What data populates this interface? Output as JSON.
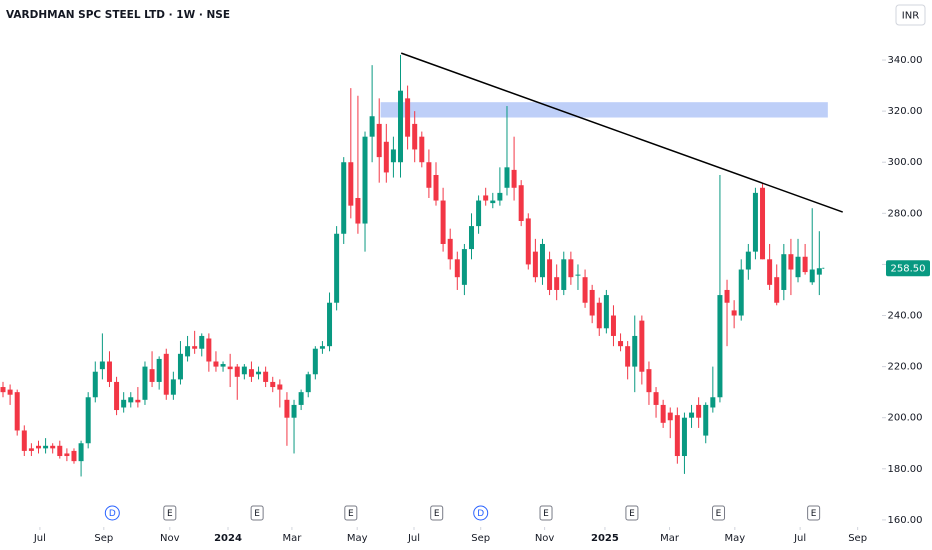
{
  "chart_data": {
    "type": "candlestick",
    "title": "VARDHMAN SPC STEEL LTD · 1W · NSE",
    "currency": "INR",
    "up_color": "#089981",
    "down_color": "#f23645",
    "categories": [
      null,
      null,
      null,
      null,
      null,
      null,
      null,
      null,
      null,
      null,
      null,
      null,
      null,
      null,
      null,
      null,
      null,
      null,
      null,
      null,
      null,
      null,
      null,
      null,
      null,
      null,
      null,
      null,
      null,
      null,
      null,
      null,
      null,
      null,
      null,
      null,
      null,
      null,
      null,
      null,
      null,
      null,
      null,
      null,
      null,
      null,
      null,
      null,
      null,
      null,
      null,
      null,
      null,
      null,
      null,
      null,
      null,
      null,
      null,
      null,
      null,
      null,
      null,
      null,
      null,
      null,
      null,
      null,
      null,
      null,
      null,
      null,
      null,
      null,
      null,
      null,
      null,
      null,
      null,
      null,
      null,
      null,
      null,
      null,
      null,
      null,
      null,
      null,
      null,
      null,
      null,
      null,
      null,
      null,
      null,
      null,
      null,
      null,
      null,
      null,
      null,
      null,
      null,
      null,
      null,
      null,
      null,
      null,
      null,
      null,
      null,
      null,
      null,
      null,
      null,
      null
    ],
    "open": [
      212,
      211,
      210,
      195,
      188,
      189,
      188,
      189,
      189,
      186,
      187,
      183,
      190,
      208,
      219,
      222,
      214,
      204,
      206,
      207,
      207,
      219,
      214,
      225,
      209,
      215,
      224,
      228,
      227,
      231,
      222,
      220,
      220,
      220,
      217,
      219,
      217,
      218,
      214,
      213,
      207,
      200,
      205,
      210,
      217,
      227,
      228,
      245,
      272,
      300,
      286,
      276,
      310,
      315,
      308,
      300,
      300,
      325,
      315,
      310,
      300,
      295,
      285,
      270,
      262,
      252,
      266,
      275,
      287,
      284,
      285,
      290,
      297,
      291,
      278,
      265,
      255,
      262,
      255,
      250,
      262,
      256,
      255,
      250,
      245,
      235,
      240,
      230,
      228,
      220,
      238,
      219,
      210,
      205,
      202,
      201,
      185,
      200,
      205,
      193,
      204,
      208,
      250,
      242,
      240,
      258,
      265,
      290,
      262,
      255,
      250,
      264,
      255,
      263,
      253,
      256
    ],
    "high": [
      214,
      213,
      211,
      197,
      190,
      191,
      192,
      190,
      191,
      188,
      188,
      191,
      210,
      222,
      233,
      226,
      216,
      210,
      210,
      212,
      222,
      226,
      224,
      227,
      218,
      230,
      232,
      234,
      233,
      233,
      226,
      222,
      225,
      221,
      221,
      222,
      220,
      220,
      216,
      215,
      210,
      207,
      211,
      218,
      228,
      230,
      249,
      275,
      302,
      329,
      326,
      312,
      338,
      325,
      315,
      310,
      342,
      330,
      320,
      312,
      305,
      300,
      290,
      274,
      265,
      268,
      280,
      287,
      290,
      288,
      298,
      322,
      310,
      293,
      280,
      270,
      270,
      265,
      260,
      265,
      265,
      260,
      258,
      252,
      247,
      250,
      244,
      233,
      230,
      240,
      240,
      222,
      212,
      207,
      204,
      204,
      202,
      205,
      208,
      206,
      220,
      295,
      254,
      246,
      262,
      268,
      290,
      292,
      268,
      260,
      268,
      270,
      270,
      268,
      282,
      273
    ],
    "low": [
      208,
      205,
      193,
      185,
      185,
      186,
      186,
      186,
      184,
      183,
      182,
      177,
      188,
      206,
      215,
      212,
      201,
      202,
      204,
      204,
      205,
      212,
      211,
      207,
      207,
      213,
      222,
      225,
      224,
      218,
      218,
      218,
      212,
      207,
      215,
      214,
      215,
      212,
      210,
      204,
      189,
      186,
      203,
      208,
      215,
      225,
      226,
      242,
      268,
      278,
      272,
      265,
      300,
      292,
      292,
      294,
      294,
      305,
      300,
      298,
      286,
      283,
      265,
      258,
      250,
      248,
      262,
      272,
      283,
      282,
      283,
      287,
      285,
      275,
      258,
      253,
      252,
      248,
      246,
      248,
      252,
      250,
      243,
      237,
      232,
      233,
      228,
      226,
      215,
      210,
      213,
      205,
      200,
      196,
      192,
      182,
      178,
      196,
      196,
      190,
      202,
      206,
      228,
      235,
      238,
      254,
      262,
      262,
      250,
      244,
      246,
      248,
      253,
      256,
      252,
      248
    ],
    "close": [
      210,
      209,
      195,
      187,
      187,
      188,
      189,
      188,
      185,
      185,
      183,
      190,
      208,
      218,
      222,
      214,
      203,
      207,
      208,
      206,
      220,
      214,
      223,
      209,
      215,
      225,
      228,
      227,
      232,
      222,
      220,
      221,
      219,
      216,
      220,
      216,
      218,
      214,
      212,
      211,
      200,
      205,
      210,
      217,
      227,
      228,
      245,
      272,
      300,
      283,
      276,
      310,
      318,
      302,
      296,
      305,
      328,
      310,
      305,
      300,
      290,
      285,
      268,
      262,
      255,
      266,
      275,
      285,
      285,
      285,
      288,
      298,
      290,
      277,
      260,
      255,
      268,
      250,
      250,
      262,
      255,
      256,
      245,
      240,
      235,
      248,
      232,
      228,
      220,
      232,
      218,
      210,
      205,
      198,
      199,
      185,
      200,
      202,
      200,
      205,
      208,
      248,
      245,
      240,
      258,
      265,
      288,
      262,
      252,
      245,
      264,
      258,
      263,
      257,
      258,
      258.5
    ],
    "xlim": [
      0,
      122
    ],
    "xticks": [
      {
        "value": 5.2,
        "label": "Jul"
      },
      {
        "value": 14.2,
        "label": "Sep"
      },
      {
        "value": 23.5,
        "label": "Nov"
      },
      {
        "value": 31.7,
        "label": "2024"
      },
      {
        "value": 40.7,
        "label": "Mar"
      },
      {
        "value": 49.9,
        "label": "May"
      },
      {
        "value": 57.9,
        "label": "Jul"
      },
      {
        "value": 67.3,
        "label": "Sep"
      },
      {
        "value": 76.3,
        "label": "Nov"
      },
      {
        "value": 84.8,
        "label": "2025"
      },
      {
        "value": 93.9,
        "label": "Mar"
      },
      {
        "value": 103.1,
        "label": "May"
      },
      {
        "value": 112.3,
        "label": "Jul"
      },
      {
        "value": 120.4,
        "label": "Sep"
      }
    ],
    "ylim": [
      158,
      363.5
    ],
    "yticks": [
      {
        "value": 160,
        "label": "160.00"
      },
      {
        "value": 180,
        "label": "180.00"
      },
      {
        "value": 200,
        "label": "200.00"
      },
      {
        "value": 220,
        "label": "220.00"
      },
      {
        "value": 240,
        "label": "240.00"
      },
      {
        "value": 260,
        "label": "260.00"
      },
      {
        "value": 280,
        "label": "280.00"
      },
      {
        "value": 300,
        "label": "300.00"
      },
      {
        "value": 320,
        "label": "320.00"
      },
      {
        "value": 340,
        "label": "340.00"
      }
    ],
    "last_price": {
      "value": 258.5,
      "label": "258.50"
    },
    "events": [
      {
        "x": 15.4,
        "label": "D"
      },
      {
        "x": 23.5,
        "label": "E"
      },
      {
        "x": 35.8,
        "label": "E"
      },
      {
        "x": 49,
        "label": "E"
      },
      {
        "x": 61.1,
        "label": "E"
      },
      {
        "x": 67.3,
        "label": "D"
      },
      {
        "x": 76.5,
        "label": "E"
      },
      {
        "x": 88.6,
        "label": "E"
      },
      {
        "x": 100.8,
        "label": "E"
      },
      {
        "x": 114.2,
        "label": "E"
      }
    ],
    "trendline": {
      "x": [
        56.1,
        118.3
      ],
      "y": [
        342.7,
        280.5
      ],
      "color": "#000000"
    },
    "zone": {
      "x": [
        53.2,
        116.2
      ],
      "y": [
        317.5,
        323.5
      ],
      "color": "#b3c7f7"
    }
  }
}
